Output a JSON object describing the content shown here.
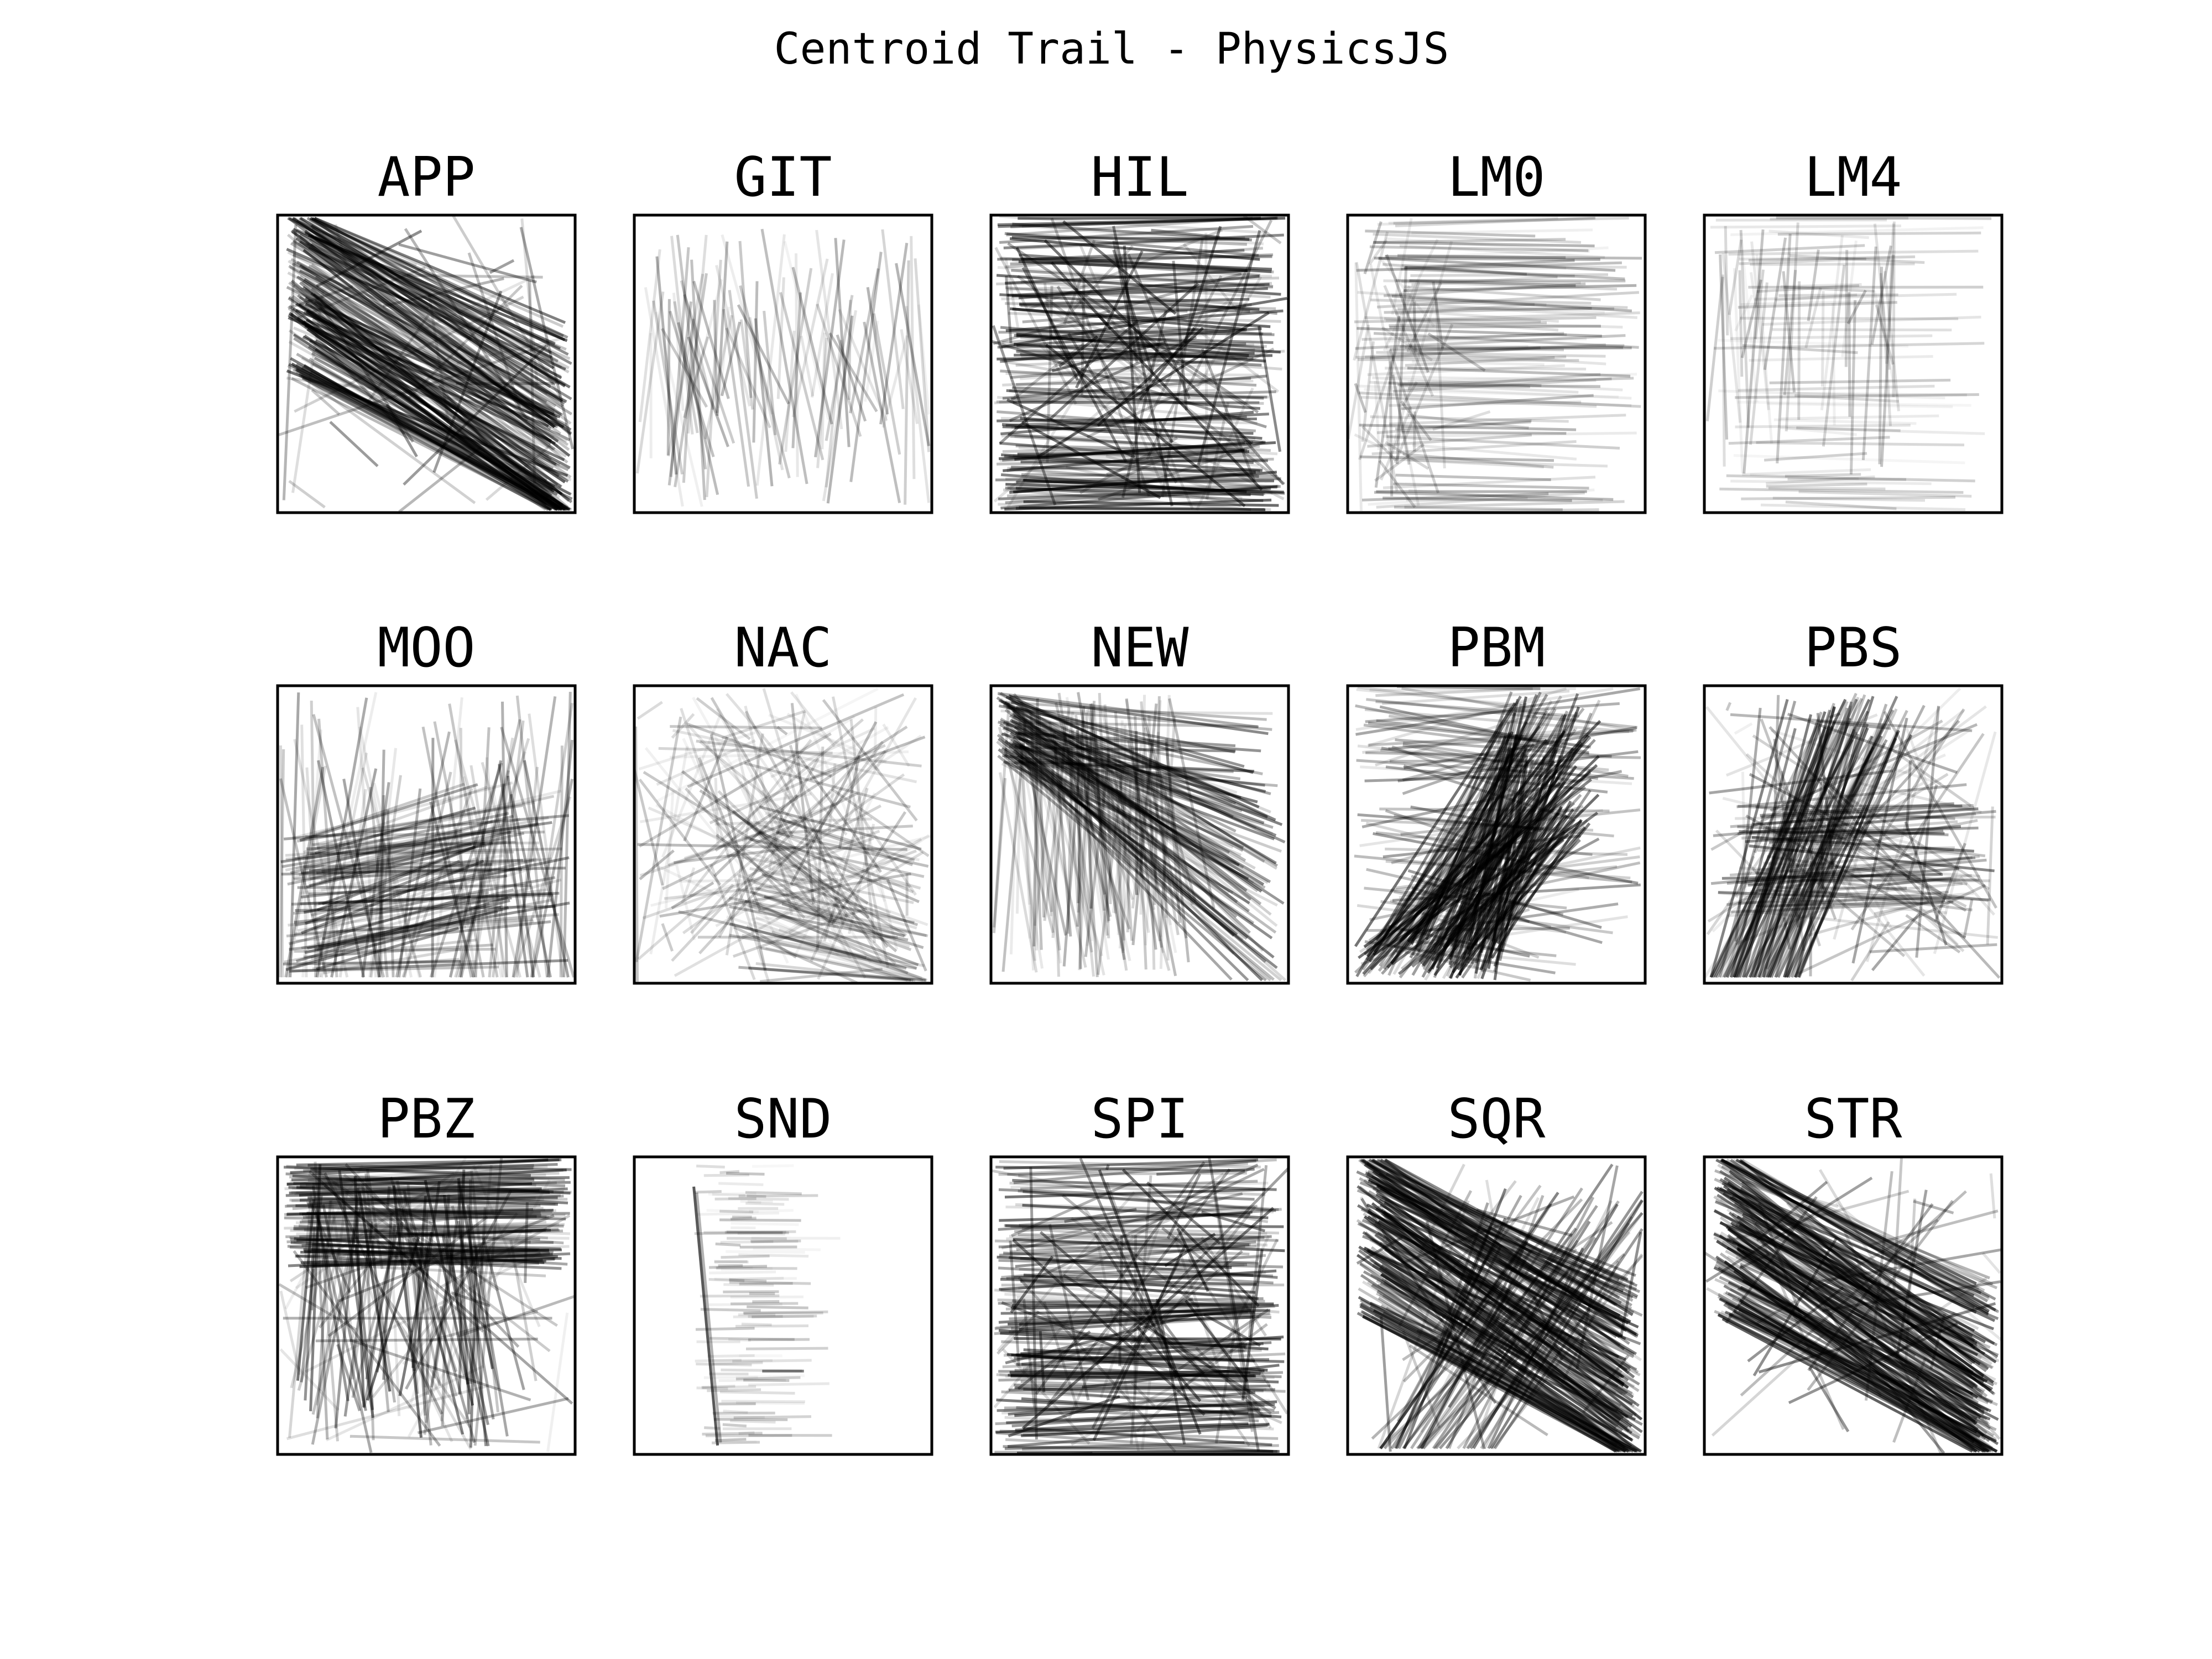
{
  "figure": {
    "title": "Centroid Trail - PhysicsJS"
  },
  "chart_data": {
    "type": "line",
    "title": "Centroid Trail - PhysicsJS",
    "layout": "3x5 grid of small multiples",
    "axes_visible": false,
    "grid": false,
    "line_color": "#000000",
    "panels": [
      {
        "name": "APP",
        "pattern": "diagonal"
      },
      {
        "name": "GIT",
        "pattern": "vertical-sparse"
      },
      {
        "name": "HIL",
        "pattern": "horizontal-dense"
      },
      {
        "name": "LM0",
        "pattern": "horizontal-light"
      },
      {
        "name": "LM4",
        "pattern": "sparse-light"
      },
      {
        "name": "MOO",
        "pattern": "horizontal-bottom"
      },
      {
        "name": "NAC",
        "pattern": "mixed-light"
      },
      {
        "name": "NEW",
        "pattern": "fan-topleft"
      },
      {
        "name": "PBM",
        "pattern": "fan-bottom"
      },
      {
        "name": "PBS",
        "pattern": "crossing"
      },
      {
        "name": "PBZ",
        "pattern": "dense-top"
      },
      {
        "name": "SND",
        "pattern": "sparse-center"
      },
      {
        "name": "SPI",
        "pattern": "horizontal-dense"
      },
      {
        "name": "SQR",
        "pattern": "diagonal-cross"
      },
      {
        "name": "STR",
        "pattern": "diagonal"
      }
    ]
  }
}
